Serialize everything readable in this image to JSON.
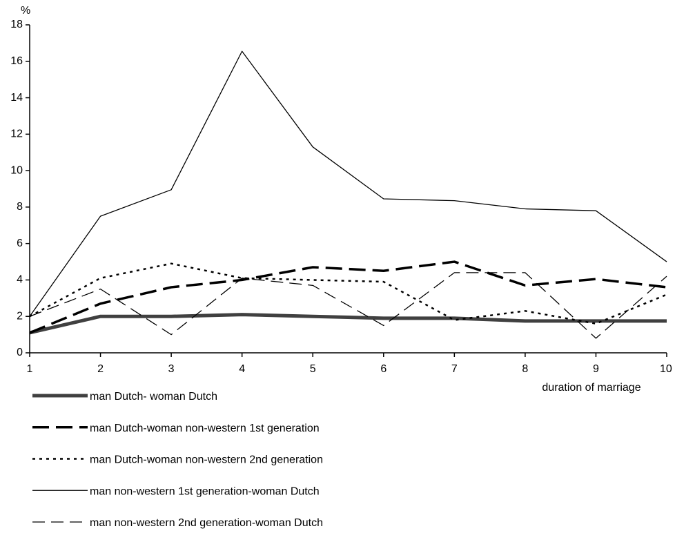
{
  "chart_data": {
    "type": "line",
    "y_label": "%",
    "x_label": "duration of marriage",
    "x": [
      1,
      2,
      3,
      4,
      5,
      6,
      7,
      8,
      9,
      10
    ],
    "xlim": [
      1,
      10
    ],
    "xticks": [
      1,
      2,
      3,
      4,
      5,
      6,
      7,
      8,
      9,
      10
    ],
    "ylim": [
      0,
      18
    ],
    "yticks": [
      0,
      2,
      4,
      6,
      8,
      10,
      12,
      14,
      16,
      18
    ],
    "grid": false,
    "series": [
      {
        "name": "man Dutch- woman Dutch",
        "color": "#404040",
        "values": [
          1.1,
          2.0,
          2.0,
          2.1,
          2.0,
          1.9,
          1.9,
          1.75,
          1.75,
          1.75
        ]
      },
      {
        "name": "man Dutch-woman non-western 1st generation",
        "color": "#000000",
        "values": [
          1.1,
          2.7,
          3.6,
          4.0,
          4.7,
          4.5,
          5.0,
          3.7,
          4.05,
          3.6
        ]
      },
      {
        "name": "man Dutch-woman non-western 2nd generation",
        "color": "#000000",
        "values": [
          2.0,
          4.1,
          4.9,
          4.1,
          4.0,
          3.9,
          1.8,
          2.3,
          1.6,
          3.2
        ]
      },
      {
        "name": "man non-western 1st generation-woman Dutch",
        "color": "#000000",
        "values": [
          2.0,
          7.5,
          8.95,
          16.55,
          11.3,
          8.45,
          8.35,
          7.9,
          7.8,
          5.0
        ]
      },
      {
        "name": "man non-western 2nd generation-woman Dutch",
        "color": "#000000",
        "values": [
          2.0,
          3.5,
          1.0,
          4.1,
          3.7,
          1.5,
          4.4,
          4.4,
          0.8,
          4.2
        ]
      }
    ]
  }
}
